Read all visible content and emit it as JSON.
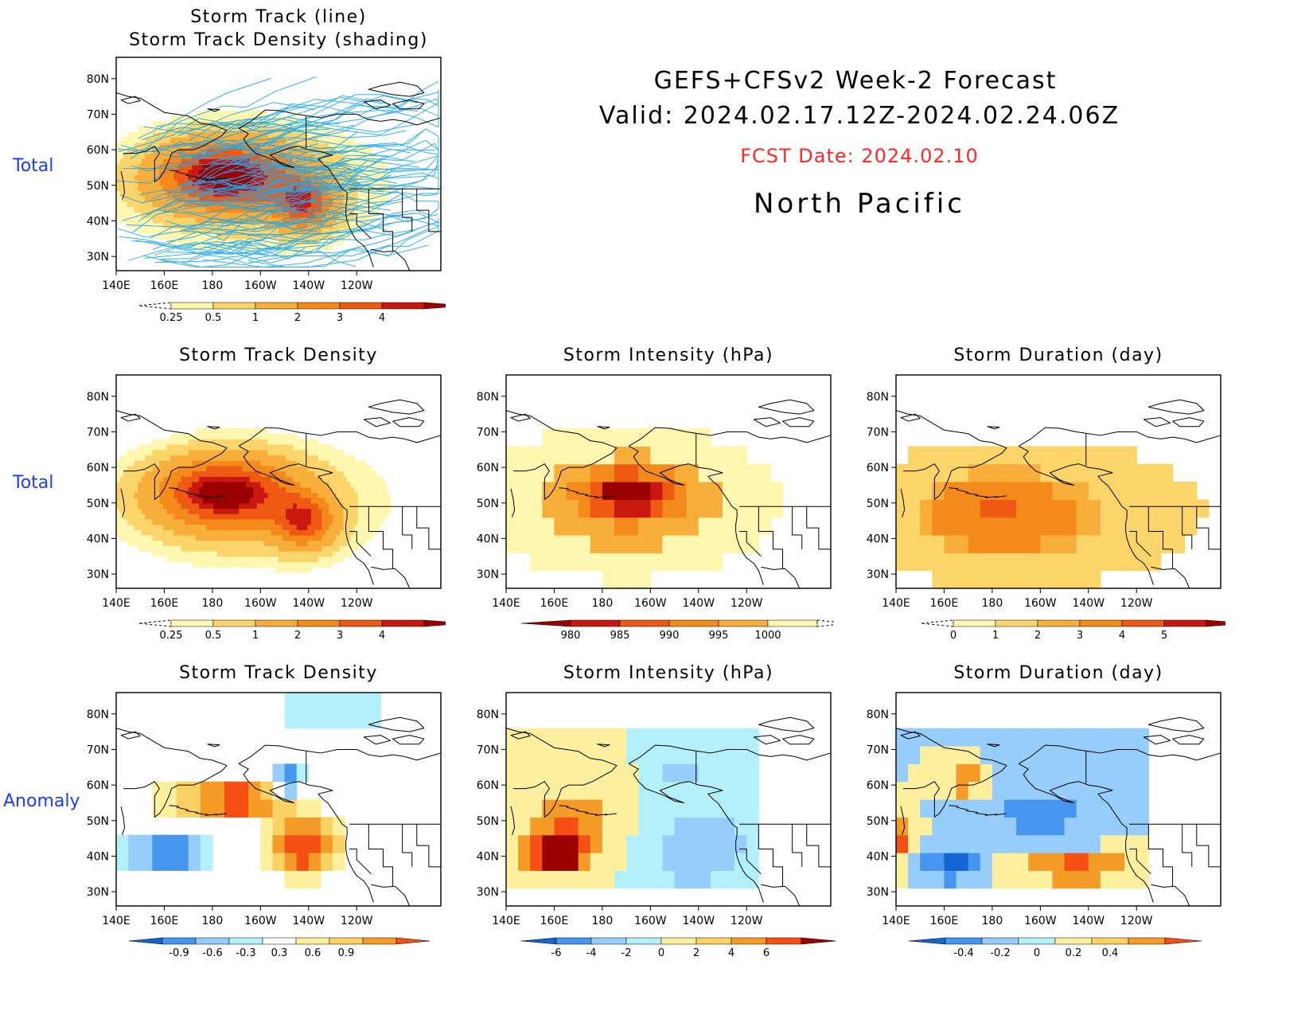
{
  "header": {
    "line1": "GEFS+CFSv2 Week-2 Forecast",
    "line2": "Valid: 2024.02.17.12Z-2024.02.24.06Z",
    "fcst": "FCST Date: 2024.02.10",
    "region": "North Pacific"
  },
  "row_labels": {
    "total1": "Total",
    "total2": "Total",
    "anomaly": "Anomaly"
  },
  "axes": {
    "lat_ticks": [
      "30N",
      "40N",
      "50N",
      "60N",
      "70N",
      "80N"
    ],
    "lon_ticks": [
      "140E",
      "160E",
      "180",
      "160W",
      "140W",
      "120W"
    ]
  },
  "colors": {
    "density": [
      "#fff6b0",
      "#fcd56a",
      "#f7ae3a",
      "#f58a1c",
      "#ee5a14",
      "#c81810",
      "#9a0202"
    ],
    "intensity": [
      "#9a0202",
      "#c81810",
      "#ee5a14",
      "#f58a1c",
      "#f7ae3a",
      "#fff6b0"
    ],
    "duration": [
      "#fff6b0",
      "#fcd56a",
      "#f7ae3a",
      "#f58a1c",
      "#ee5a14",
      "#c81810"
    ],
    "anom": [
      "#1464d2",
      "#4696f0",
      "#96cdfa",
      "#b4f0fa",
      "#ffffff",
      "#fff0a0",
      "#fad264",
      "#f59b28",
      "#f55014",
      "#9a0202"
    ],
    "track_line": "#1ea8f0",
    "track_shade": "#e89090"
  },
  "chart_data": [
    {
      "id": "p1",
      "type": "heatmap",
      "title": [
        "Storm Track (line)",
        "Storm Track Density (shading)"
      ],
      "overlay": "storm tracks (line)",
      "colorbar": {
        "labels": [
          "0.25",
          "0.5",
          "1",
          "2",
          "3",
          "4"
        ]
      }
    },
    {
      "id": "p2",
      "type": "heatmap",
      "title": [
        "Storm Track Density"
      ],
      "colorbar": {
        "labels": [
          "0.25",
          "0.5",
          "1",
          "2",
          "3",
          "4"
        ]
      }
    },
    {
      "id": "p3",
      "type": "heatmap",
      "title": [
        "Storm Intensity (hPa)"
      ],
      "colorbar": {
        "labels": [
          "980",
          "985",
          "990",
          "995",
          "1000"
        ]
      }
    },
    {
      "id": "p4",
      "type": "heatmap",
      "title": [
        "Storm Duration (day)"
      ],
      "colorbar": {
        "labels": [
          "0",
          "1",
          "2",
          "3",
          "4",
          "5"
        ]
      }
    },
    {
      "id": "p5",
      "type": "heatmap",
      "title": [
        "Storm Track Density"
      ],
      "colorbar": {
        "labels": [
          "-0.9",
          "-0.6",
          "-0.3",
          "0.3",
          "0.6",
          "0.9"
        ]
      }
    },
    {
      "id": "p6",
      "type": "heatmap",
      "title": [
        "Storm Intensity (hPa)"
      ],
      "colorbar": {
        "labels": [
          "-6",
          "-4",
          "-2",
          "0",
          "2",
          "4",
          "6"
        ]
      }
    },
    {
      "id": "p7",
      "type": "heatmap",
      "title": [
        "Storm Duration (day)"
      ],
      "colorbar": {
        "labels": [
          "-0.4",
          "-0.2",
          "0",
          "0.2",
          "0.4"
        ]
      }
    }
  ]
}
